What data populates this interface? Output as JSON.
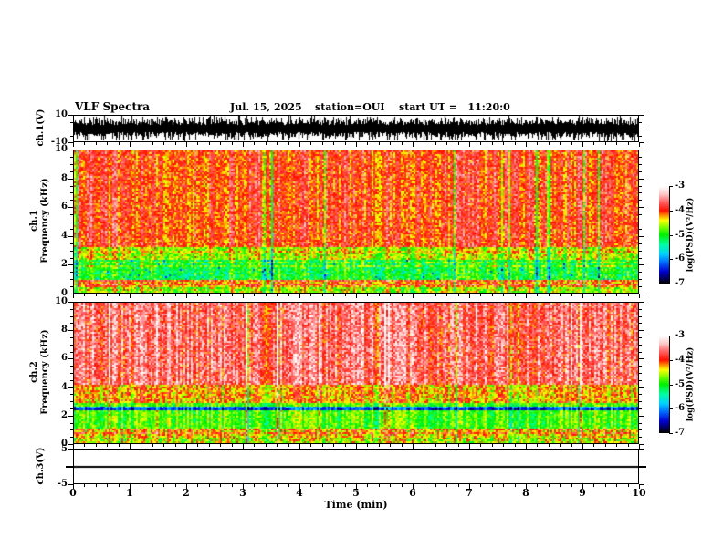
{
  "title": {
    "main": "VLF Spectra",
    "date": "Jul. 15, 2025",
    "station": "station=OUI",
    "start_ut": "start UT =   11:20:0"
  },
  "x_axis": {
    "label": "Time (min)",
    "ticks": [
      0,
      1,
      2,
      3,
      4,
      5,
      6,
      7,
      8,
      9,
      10
    ],
    "range": [
      0,
      10
    ],
    "minor_step": 0.2
  },
  "panels": {
    "ch1_wave": {
      "ylabel": "ch.1(V)",
      "ytick_labels": [
        "10",
        "-10"
      ],
      "ytick_values": [
        10,
        -10
      ],
      "minor_ticks": [
        5,
        0,
        -5
      ],
      "ylim": [
        -10,
        10
      ]
    },
    "ch1_spec": {
      "ylabel_ch": "ch.1",
      "ylabel_axis": "Frequency (kHz)",
      "yticks": [
        0,
        2,
        4,
        6,
        8,
        10
      ],
      "minor_step": 0.5,
      "ylim": [
        0,
        10
      ]
    },
    "ch2_spec": {
      "ylabel_ch": "ch.2",
      "ylabel_axis": "Frequency (kHz)",
      "yticks": [
        0,
        2,
        4,
        6,
        8,
        10
      ],
      "minor_step": 0.5,
      "ylim": [
        0,
        10
      ]
    },
    "ch3_wave": {
      "ylabel": "ch.3(V)",
      "ytick_labels": [
        "5",
        "-5"
      ],
      "ytick_values": [
        5,
        -5
      ],
      "mid_tick": 0,
      "ylim": [
        -5,
        5
      ]
    }
  },
  "colorbar": {
    "label": "log(PSD)(V²/Hz)",
    "ticks": [
      -3,
      -4,
      -5,
      -6,
      -7
    ],
    "range": [
      -7,
      -3
    ],
    "gradient": [
      [
        0.0,
        "#000000"
      ],
      [
        0.05,
        "#000060"
      ],
      [
        0.12,
        "#0000d0"
      ],
      [
        0.22,
        "#0070ff"
      ],
      [
        0.3,
        "#00d0ff"
      ],
      [
        0.4,
        "#00ffa0"
      ],
      [
        0.5,
        "#00ee00"
      ],
      [
        0.58,
        "#80ff00"
      ],
      [
        0.65,
        "#ffff00"
      ],
      [
        0.7,
        "#ff9000"
      ],
      [
        0.75,
        "#ff1000"
      ],
      [
        0.84,
        "#ff6464"
      ],
      [
        0.92,
        "#ffc8c8"
      ],
      [
        1.0,
        "#ffffff"
      ]
    ]
  },
  "chart_data": [
    {
      "id": "ch1_waveform",
      "type": "line",
      "channel": "ch.1",
      "units": "V",
      "x_range_min": [
        0,
        10
      ],
      "ylim": [
        -10,
        10
      ],
      "description": "Dense broadband noise waveform filling approximately ±10 V with frequent full-scale spikes (clipped at ±10).",
      "gen": {
        "seed": 11,
        "base_amp": 2.8,
        "rand_amp": 4.2,
        "spike_prob": 0.18,
        "spike_amp": 9.8
      }
    },
    {
      "id": "ch1_spectrogram",
      "type": "heatmap",
      "channel": "ch.1",
      "x_range_min": [
        0,
        10
      ],
      "freq_range_khz": [
        0,
        10
      ],
      "z_label": "log(PSD)(V²/Hz)",
      "z_range": [
        -7,
        -3
      ],
      "description": "Red broadband hiss (~-4) above ~3 kHz with vertical yellow/green streaks; green band (~-5) 1-2.3 kHz with cyan/blue patches; orange/red horizontal band 0.4-0.9 kHz; thin enhanced lines near 0.55, 0.78, 1.85, 2.1 kHz.",
      "bands": [
        {
          "f": [
            3.2,
            10.01
          ],
          "base": -3.95,
          "noise": 0.32
        },
        {
          "f": [
            2.3,
            3.2
          ],
          "base": -4.55,
          "noise": 0.42
        },
        {
          "f": [
            0.9,
            2.3
          ],
          "base": -5.05,
          "noise": 0.38
        },
        {
          "f": [
            0.35,
            0.9
          ],
          "base": -4.2,
          "noise": 0.38
        },
        {
          "f": [
            0.0,
            0.35
          ],
          "base": -4.6,
          "noise": 0.5
        }
      ],
      "lines": [
        {
          "f": 1.85,
          "delta": 0.35
        },
        {
          "f": 2.1,
          "delta": 0.3
        },
        {
          "f": 0.55,
          "delta": 0.35
        },
        {
          "f": 0.78,
          "delta": 0.3
        },
        {
          "f": 2.9,
          "delta": 0.25
        }
      ],
      "gen": {
        "seed": 7,
        "col_noise": 0.5,
        "deep_streak_prob": 0.06,
        "deep_streak": -0.9,
        "blob": {
          "f": [
            0.9,
            2.3
          ],
          "prob": 0.06,
          "delta": -0.75
        }
      }
    },
    {
      "id": "ch2_spectrogram",
      "type": "heatmap",
      "channel": "ch.2",
      "x_range_min": [
        0,
        10
      ],
      "freq_range_khz": [
        0,
        10
      ],
      "z_label": "log(PSD)(V²/Hz)",
      "z_range": [
        -7,
        -3
      ],
      "description": "Pink/white-red intense hiss (~-3.6) above ~4 kHz with red vertical streaks; yellow-green band 1-2.8 kHz; yellow/orange with red bursts below 1 kHz; dark absorption double line near 2.35-2.55 kHz.",
      "bands": [
        {
          "f": [
            4.2,
            10.01
          ],
          "base": -3.65,
          "noise": 0.38
        },
        {
          "f": [
            2.8,
            4.2
          ],
          "base": -4.25,
          "noise": 0.42
        },
        {
          "f": [
            1.0,
            2.8
          ],
          "base": -4.85,
          "noise": 0.3
        },
        {
          "f": [
            0.35,
            1.0
          ],
          "base": -4.35,
          "noise": 0.45
        },
        {
          "f": [
            0.0,
            0.35
          ],
          "base": -4.55,
          "noise": 0.5
        }
      ],
      "lines": [
        {
          "f": 2.35,
          "delta": -1.5
        },
        {
          "f": 2.55,
          "delta": -1.2
        },
        {
          "f": 0.7,
          "delta": 0.3
        },
        {
          "f": 1.0,
          "delta": 0.2
        }
      ],
      "gen": {
        "seed": 23,
        "col_noise": 0.45,
        "deep_streak_prob": 0.05,
        "deep_streak": -0.5,
        "white_streak_prob": 0.05,
        "white_streak": 0.45
      }
    },
    {
      "id": "ch3_waveform",
      "type": "line",
      "channel": "ch.3",
      "units": "V",
      "x_range_min": [
        0,
        10
      ],
      "ylim": [
        -5,
        5
      ],
      "description": "Flat line at 0 V (no signal).",
      "gen": {
        "constant": 0
      }
    }
  ]
}
